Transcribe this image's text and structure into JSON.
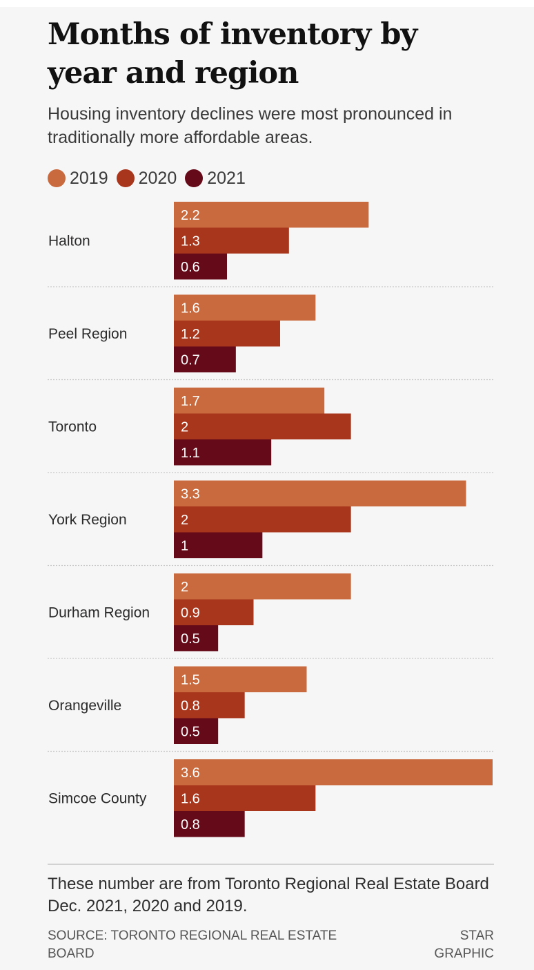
{
  "title": "Months of inventory by year and region",
  "subtitle": "Housing inventory declines were most pronounced in traditionally more affordable areas.",
  "legend": [
    {
      "label": "2019",
      "color": "#c96a3e"
    },
    {
      "label": "2020",
      "color": "#a8361d"
    },
    {
      "label": "2021",
      "color": "#650a18"
    }
  ],
  "chart_data": {
    "type": "bar",
    "orientation": "horizontal",
    "categories": [
      "Halton",
      "Peel Region",
      "Toronto",
      "York Region",
      "Durham Region",
      "Orangeville",
      "Simcoe County"
    ],
    "series": [
      {
        "name": "2019",
        "color": "#c96a3e",
        "values": [
          2.2,
          1.6,
          1.7,
          3.3,
          2,
          1.5,
          3.6
        ]
      },
      {
        "name": "2020",
        "color": "#a8361d",
        "values": [
          1.3,
          1.2,
          2,
          2,
          0.9,
          0.8,
          1.6
        ]
      },
      {
        "name": "2021",
        "color": "#650a18",
        "values": [
          0.6,
          0.7,
          1.1,
          1,
          0.5,
          0.5,
          0.8
        ]
      }
    ],
    "xlim": [
      0,
      3.6
    ],
    "grid": false,
    "legend_position": "top-left"
  },
  "footer": {
    "note": "These number are from Toronto Regional Real Estate Board Dec. 2021, 2020 and 2019.",
    "source": "SOURCE: TORONTO REGIONAL REAL ESTATE BOARD",
    "credit": "STAR GRAPHIC"
  }
}
